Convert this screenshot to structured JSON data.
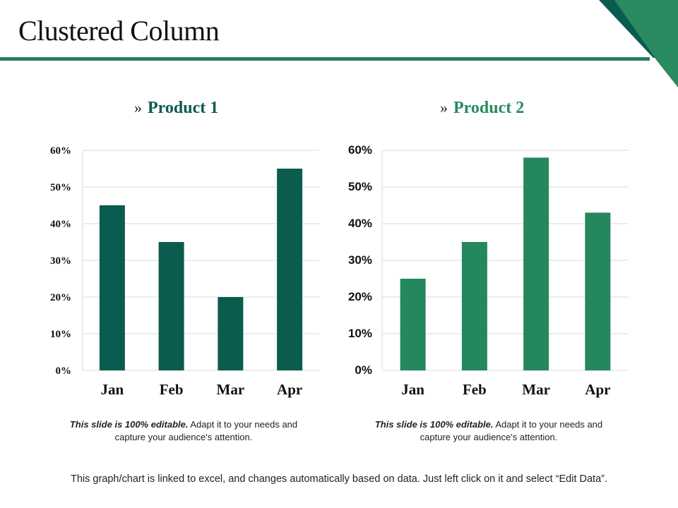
{
  "slide": {
    "title": "Clustered Column",
    "chevron": "»",
    "footer_note": "This graph/chart is linked to excel, and changes automatically  based on data. Just left click on it and select “Edit Data”."
  },
  "colors": {
    "rule": "#2a7d5e",
    "corner_dark": "#0a5c4e",
    "corner_light": "#2a8a60",
    "grid": "#d9d9d9"
  },
  "captions": [
    {
      "bold": "This slide is 100% editable.",
      "rest": " Adapt it to your needs and capture your audience's attention."
    },
    {
      "bold": "This slide is 100% editable.",
      "rest": " Adapt it to your needs and capture your audience's attention."
    }
  ],
  "chart_data": [
    {
      "type": "bar",
      "title": "Product 1",
      "title_color": "#0a5c4e",
      "color": "#0a5c4e",
      "categories": [
        "Jan",
        "Feb",
        "Mar",
        "Apr"
      ],
      "values": [
        45,
        35,
        20,
        55
      ],
      "ylim": [
        0,
        60
      ],
      "yticks": [
        "0%",
        "10%",
        "20%",
        "30%",
        "40%",
        "50%",
        "60%"
      ],
      "xlabel": "",
      "ylabel": "",
      "grid": true,
      "tick_font": "serif"
    },
    {
      "type": "bar",
      "title": "Product 2",
      "title_color": "#2a8a60",
      "color": "#24875e",
      "categories": [
        "Jan",
        "Feb",
        "Mar",
        "Apr"
      ],
      "values": [
        25,
        35,
        58,
        43
      ],
      "ylim": [
        0,
        60
      ],
      "yticks": [
        "0%",
        "10%",
        "20%",
        "30%",
        "40%",
        "50%",
        "60%"
      ],
      "xlabel": "",
      "ylabel": "",
      "grid": true,
      "tick_font": "sans"
    }
  ]
}
